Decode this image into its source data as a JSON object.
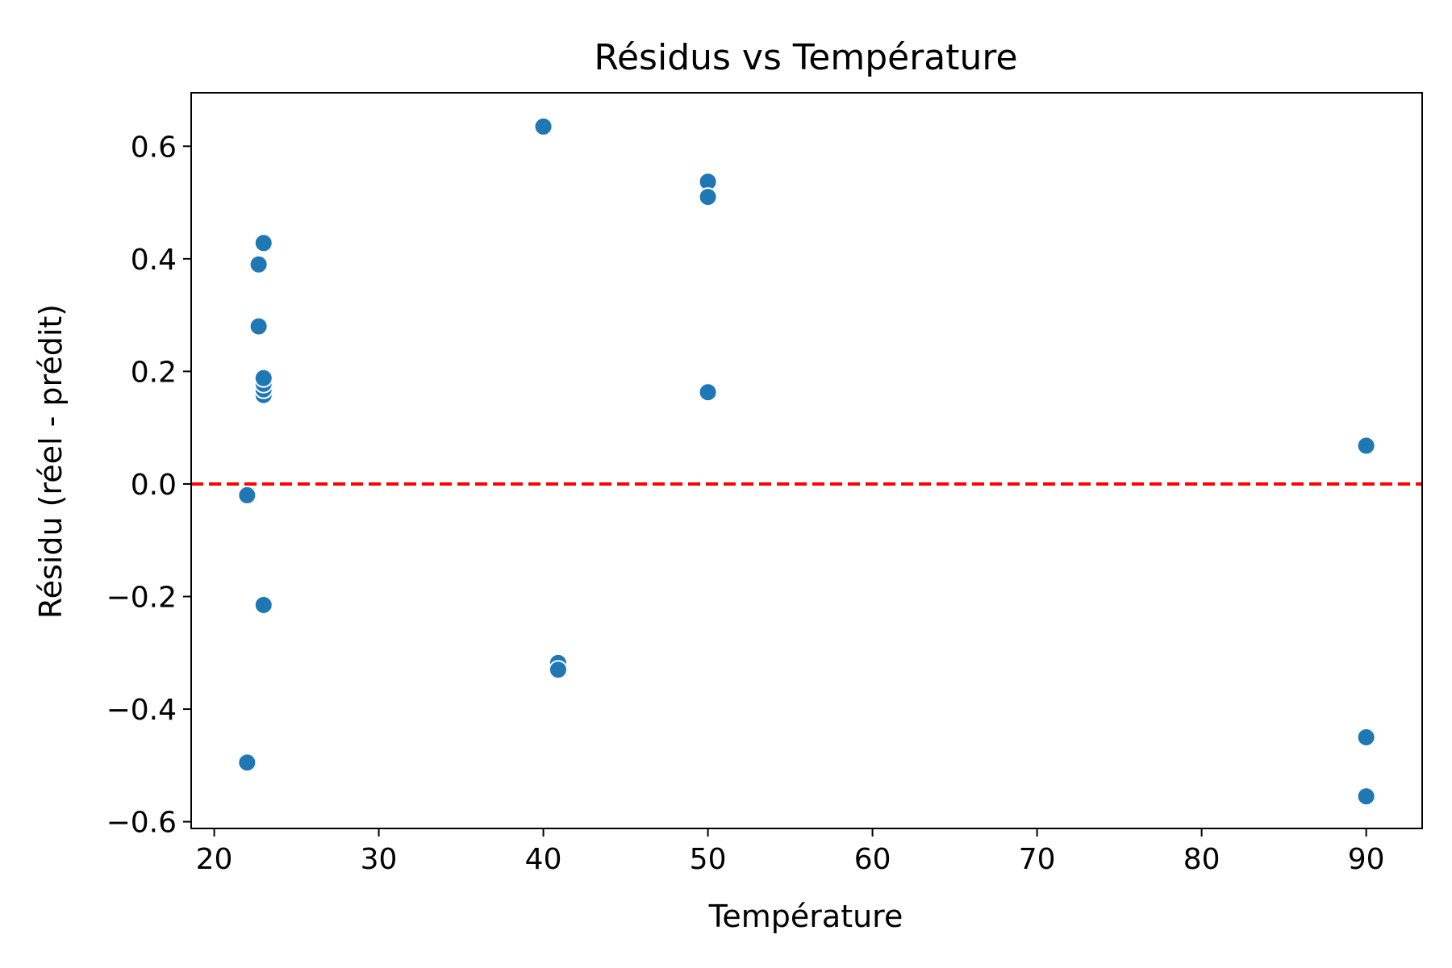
{
  "chart_data": {
    "type": "scatter",
    "title": "Résidus vs Température",
    "xlabel": "Température",
    "ylabel": "Résidu (réel - prédit)",
    "xlim": [
      18.6,
      93.4
    ],
    "ylim": [
      -0.612,
      0.695
    ],
    "xticks": [
      20,
      30,
      40,
      50,
      60,
      70,
      80,
      90
    ],
    "yticks": [
      -0.6,
      -0.4,
      -0.2,
      0.0,
      0.2,
      0.4,
      0.6
    ],
    "ytick_labels": [
      "−0.6",
      "−0.4",
      "−0.2",
      "0.0",
      "0.2",
      "0.4",
      "0.6"
    ],
    "grid": false,
    "reference_line": {
      "y": 0.0,
      "style": "dashed",
      "color": "#ff0000"
    },
    "point_color": "#1f77b4",
    "points": [
      {
        "x": 22.0,
        "y": -0.02
      },
      {
        "x": 22.0,
        "y": -0.495
      },
      {
        "x": 22.7,
        "y": 0.39
      },
      {
        "x": 22.7,
        "y": 0.28
      },
      {
        "x": 23.0,
        "y": 0.428
      },
      {
        "x": 23.0,
        "y": 0.158
      },
      {
        "x": 23.0,
        "y": 0.168
      },
      {
        "x": 23.0,
        "y": 0.178
      },
      {
        "x": 23.0,
        "y": 0.188
      },
      {
        "x": 23.0,
        "y": -0.215
      },
      {
        "x": 40.0,
        "y": 0.635
      },
      {
        "x": 40.9,
        "y": -0.318
      },
      {
        "x": 40.9,
        "y": -0.33
      },
      {
        "x": 50.0,
        "y": 0.537
      },
      {
        "x": 50.0,
        "y": 0.51
      },
      {
        "x": 50.0,
        "y": 0.163
      },
      {
        "x": 90.0,
        "y": 0.068
      },
      {
        "x": 90.0,
        "y": -0.45
      },
      {
        "x": 90.0,
        "y": -0.555
      }
    ]
  }
}
